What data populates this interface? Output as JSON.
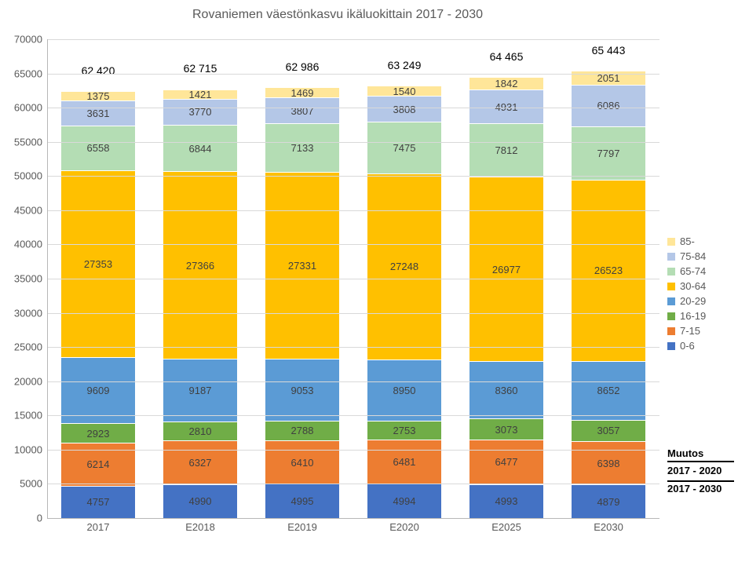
{
  "chart": {
    "type": "stacked-bar",
    "title": "Rovaniemen väestönkasvu ikäluokittain 2017 - 2030",
    "title_fontsize": 16,
    "title_color": "#595959",
    "background_color": "#ffffff",
    "grid_color": "#d9d9d9",
    "axis_color": "#b7b7b7",
    "tick_fontsize": 13,
    "tick_color": "#595959",
    "bar_label_fontsize": 13,
    "bar_label_color": "#404040",
    "total_label_fontsize": 14,
    "total_label_color": "#000000",
    "ylim": [
      0,
      70000
    ],
    "ytick_step": 5000,
    "bar_group_width_ratio": 0.72,
    "categories": [
      "2017",
      "E2018",
      "E2019",
      "E2020",
      "E2025",
      "E2030"
    ],
    "totals": [
      "62 420",
      "62 715",
      "62 986",
      "63 249",
      "64 465",
      "65 443"
    ],
    "series": [
      {
        "key": "0-6",
        "color": "#4472c4"
      },
      {
        "key": "7-15",
        "color": "#ed7d31"
      },
      {
        "key": "16-19",
        "color": "#70ad47"
      },
      {
        "key": "20-29",
        "color": "#5b9bd5"
      },
      {
        "key": "30-64",
        "color": "#ffc000"
      },
      {
        "key": "65-74",
        "color": "#b4ddb4"
      },
      {
        "key": "75-84",
        "color": "#b4c7e7"
      },
      {
        "key": "85-",
        "color": "#ffe699"
      }
    ],
    "values": [
      [
        4757,
        6214,
        2923,
        9609,
        27353,
        6558,
        3631,
        1375
      ],
      [
        4990,
        6327,
        2810,
        9187,
        27366,
        6844,
        3770,
        1421
      ],
      [
        4995,
        6410,
        2788,
        9053,
        27331,
        7133,
        3807,
        1469
      ],
      [
        4994,
        6481,
        2753,
        8950,
        27248,
        7475,
        3808,
        1540
      ],
      [
        4993,
        6477,
        3073,
        8360,
        26977,
        7812,
        4931,
        1842
      ],
      [
        4879,
        6398,
        3057,
        8652,
        26523,
        7797,
        6086,
        2051
      ]
    ]
  },
  "legend": {
    "fontsize": 13,
    "color": "#595959",
    "items": [
      {
        "label": "85-",
        "color": "#ffe699"
      },
      {
        "label": "75-84",
        "color": "#b4c7e7"
      },
      {
        "label": "65-74",
        "color": "#b4ddb4"
      },
      {
        "label": "30-64",
        "color": "#ffc000"
      },
      {
        "label": "20-29",
        "color": "#5b9bd5"
      },
      {
        "label": "16-19",
        "color": "#70ad47"
      },
      {
        "label": "7-15",
        "color": "#ed7d31"
      },
      {
        "label": "0-6",
        "color": "#4472c4"
      }
    ]
  },
  "muutos": {
    "title": "Muutos",
    "fontsize": 13,
    "rows": [
      "2017 - 2020",
      "2017 - 2030"
    ]
  }
}
